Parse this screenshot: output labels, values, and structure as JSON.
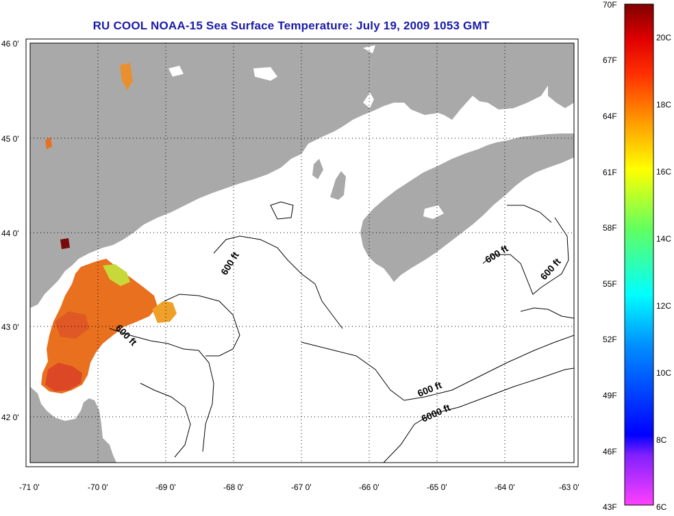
{
  "title": "RU COOL  NOAA-15  Sea Surface Temperature:  July 19, 2009 1053 GMT",
  "colors": {
    "land": "#a9a9a9",
    "sea": "#ffffff",
    "title": "#1a1aa8",
    "grid": "#000000",
    "sst_warm": "#e8701e",
    "sst_hot": "#d83a2a",
    "sst_cool": "#c8d838"
  },
  "map": {
    "lon_range": [
      -71,
      -63
    ],
    "lat_range": [
      41.5,
      46
    ],
    "lon_ticks": [
      "-71 0'",
      "-70 0'",
      "-69 0'",
      "-68 0'",
      "-67 0'",
      "-66 0'",
      "-65 0'",
      "-64 0'",
      "-63 0'"
    ],
    "lat_ticks": [
      "46 0'",
      "45 0'",
      "44 0'",
      "43 0'",
      "42 0'"
    ],
    "grid": "dotted"
  },
  "contours": [
    {
      "label": "600 ft"
    },
    {
      "label": "600 ft"
    },
    {
      "label": "600 ft"
    },
    {
      "label": "600 ft"
    },
    {
      "label": "600 ft"
    },
    {
      "label": "6000 ft"
    }
  ],
  "colorbar": {
    "fahrenheit": [
      "70F",
      "67F",
      "64F",
      "61F",
      "58F",
      "55F",
      "52F",
      "49F",
      "46F",
      "43F"
    ],
    "celsius": [
      "20C",
      "18C",
      "16C",
      "14C",
      "12C",
      "10C",
      "8C",
      "6C"
    ]
  }
}
